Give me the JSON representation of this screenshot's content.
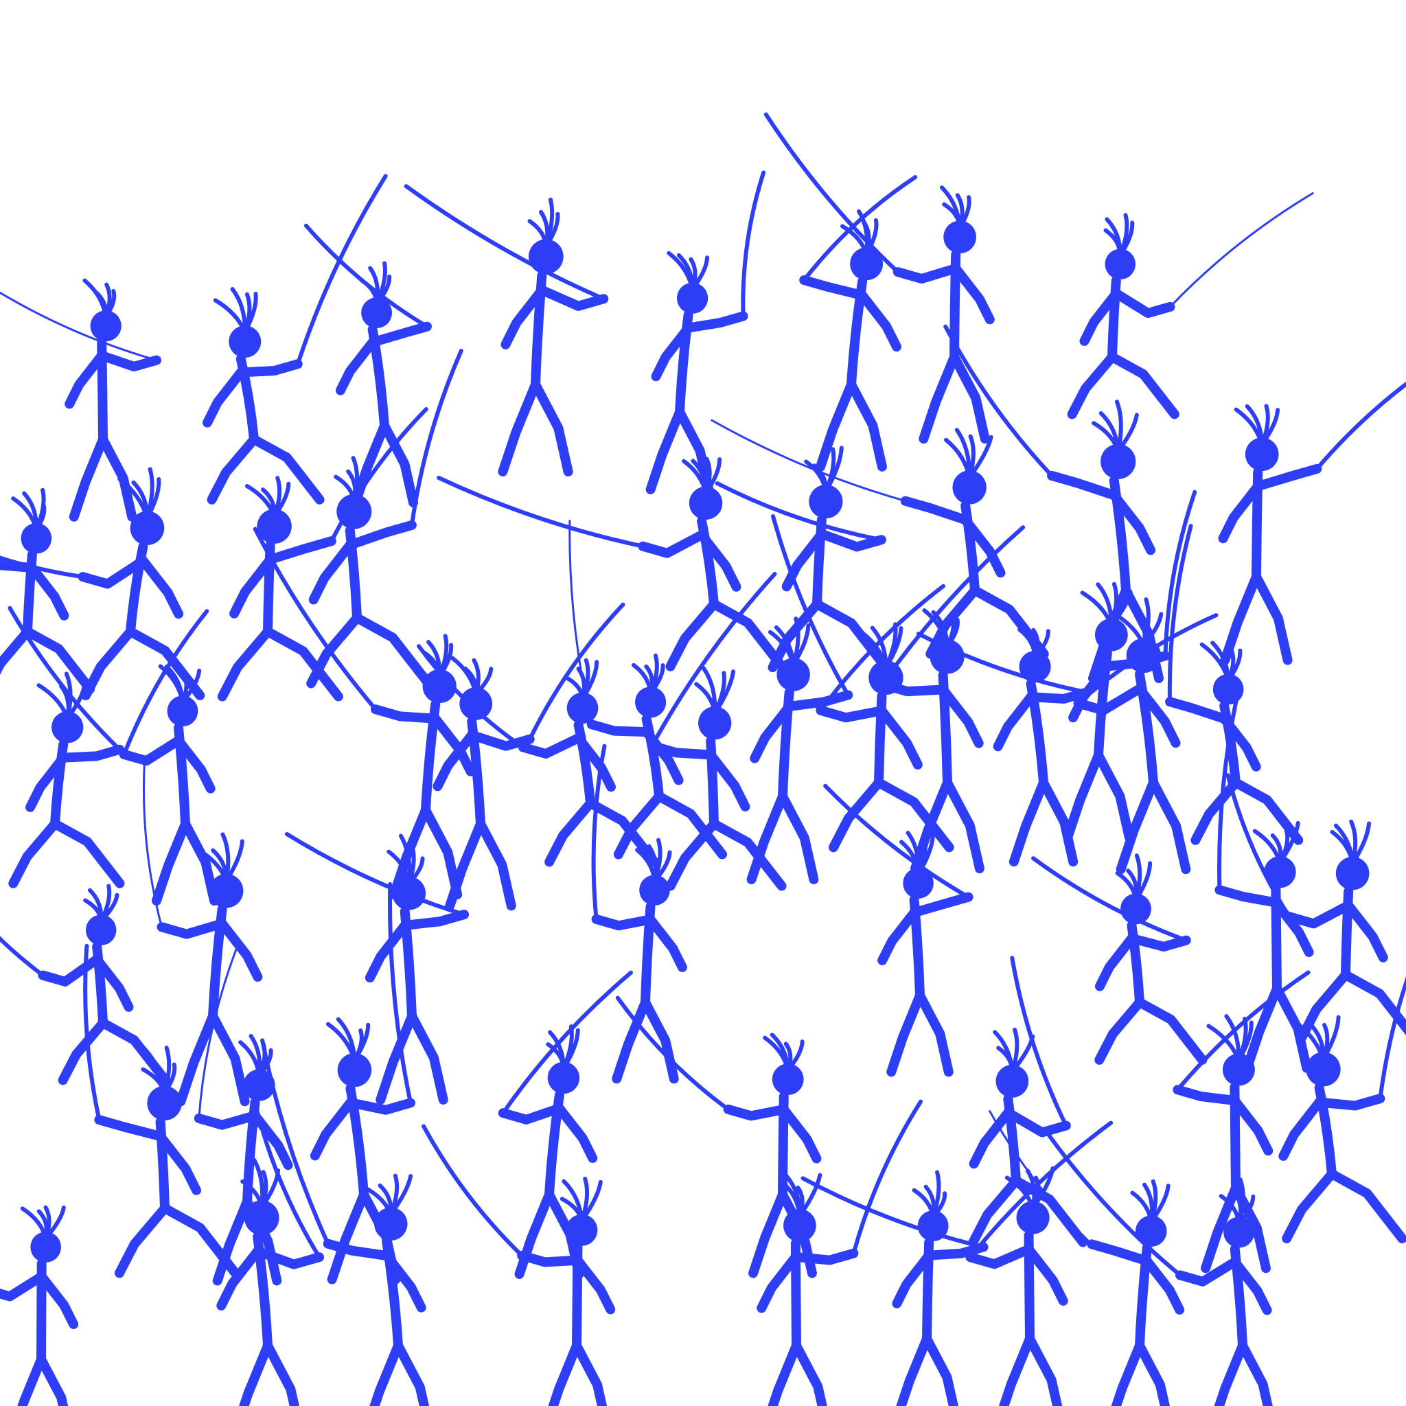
{
  "sheet": {
    "background": "#ffffff",
    "figure_color": "#2e3ef7",
    "figure_count": 56,
    "icon": "stick-swordsman-sprite"
  }
}
